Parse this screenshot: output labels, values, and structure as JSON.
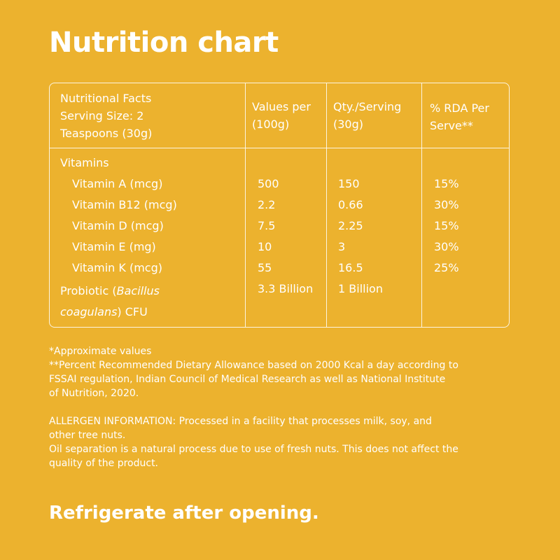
{
  "title": "Nutrition chart",
  "table": {
    "headers": {
      "facts_line1": "Nutritional Facts",
      "facts_line2": "Serving Size: 2",
      "facts_line3": "Teaspoons (30g)",
      "values_line1": "Values per",
      "values_line2": "(100g)",
      "qty_line1": "Qty./Serving",
      "qty_line2": "(30g)",
      "rda_line1": "% RDA Per",
      "rda_line2": "Serve**"
    },
    "section_label": "Vitamins",
    "rows": [
      {
        "name": "Vitamin A (mcg)",
        "per100g": "500",
        "serving": "150",
        "rda": "15%"
      },
      {
        "name": "Vitamin B12 (mcg)",
        "per100g": "2.2",
        "serving": "0.66",
        "rda": "30%"
      },
      {
        "name": "Vitamin D (mcg)",
        "per100g": "7.5",
        "serving": "2.25",
        "rda": "15%"
      },
      {
        "name": "Vitamin E (mg)",
        "per100g": "10",
        "serving": "3",
        "rda": "30%"
      },
      {
        "name": "Vitamin K (mcg)",
        "per100g": "55",
        "serving": "16.5",
        "rda": "25%"
      }
    ],
    "probiotic": {
      "prefix": "Probiotic (",
      "species_part1": "Bacillus",
      "species_part2": "coagulans",
      "suffix": ") CFU",
      "per100g": "3.3 Billion",
      "serving": "1 Billion"
    }
  },
  "notes": {
    "approx": "*Approximate values",
    "rda_line1": "**Percent Recommended Dietary Allowance based on 2000 Kcal a day according to",
    "rda_line2": "FSSAI regulation, Indian Council of Medical Research as well as National Institute",
    "rda_line3": "of Nutrition, 2020.",
    "allergen_line1": "ALLERGEN INFORMATION: Processed in a facility that processes milk, soy, and",
    "allergen_line2": "other tree nuts.",
    "oil_line1": "Oil separation is a natural process due to use of fresh nuts. This does not affect the",
    "oil_line2": "quality of the product."
  },
  "footer": "Refrigerate after opening.",
  "colors": {
    "background": "#ECB22E",
    "text": "#FFFFFF"
  }
}
